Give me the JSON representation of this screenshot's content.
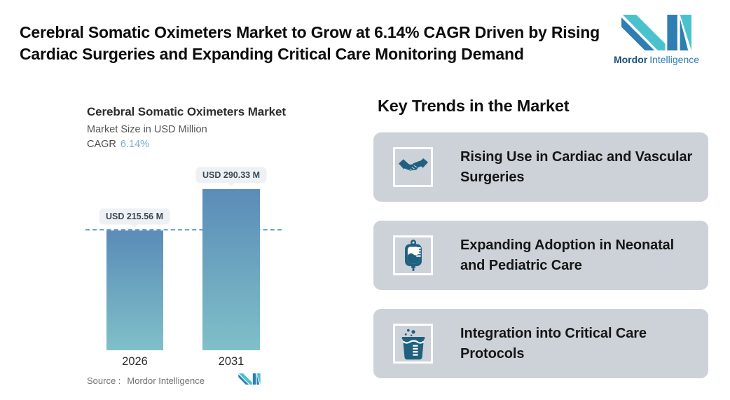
{
  "header": {
    "title": "Cerebral Somatic Oximeters Market to Grow at 6.14% CAGR Driven by Rising Cardiac Surgeries and Expanding Critical Care Monitoring Demand"
  },
  "brand": {
    "name_bold": "Mordor",
    "name_light": "Intelligence",
    "teal": "#4ac2cd",
    "blue": "#2e7db3"
  },
  "chart": {
    "title": "Cerebral Somatic Oximeters Market",
    "subtitle": "Market Size in USD Million",
    "cagr_label": "CAGR",
    "cagr_value": "6.14%",
    "source_label": "Source :",
    "source_value": "Mordor Intelligence"
  },
  "chart_data": {
    "type": "bar",
    "categories": [
      "2026",
      "2031"
    ],
    "values": [
      215.56,
      290.33
    ],
    "value_labels": [
      "USD 215.56 M",
      "USD 290.33 M"
    ],
    "title": "Cerebral Somatic Oximeters Market",
    "ylabel": "Market Size in USD Million",
    "cagr_percent": 6.14,
    "ylim": [
      0,
      300
    ],
    "grid": "off",
    "legend": "none",
    "reference_line_value": 215.56,
    "reference_line_style": "dashed",
    "bar_color_top": "#5a8cb8",
    "bar_color_bottom": "#7fc0c8"
  },
  "trends": {
    "heading": "Key Trends in the Market",
    "items": [
      {
        "icon": "handshake-icon",
        "label": "Rising Use in Cardiac and Vascular Surgeries"
      },
      {
        "icon": "iv-bag-icon",
        "label": "Expanding Adoption in Neonatal and Pediatric Care"
      },
      {
        "icon": "beaker-icon",
        "label": "Integration into Critical Care Protocols"
      }
    ]
  },
  "colors": {
    "card_background": "#cdd2d8",
    "icon_blue": "#20607f",
    "dashed_line": "#6fa3c8",
    "callout_background": "#eef1f4",
    "cagr_value_color": "#79afcd"
  }
}
